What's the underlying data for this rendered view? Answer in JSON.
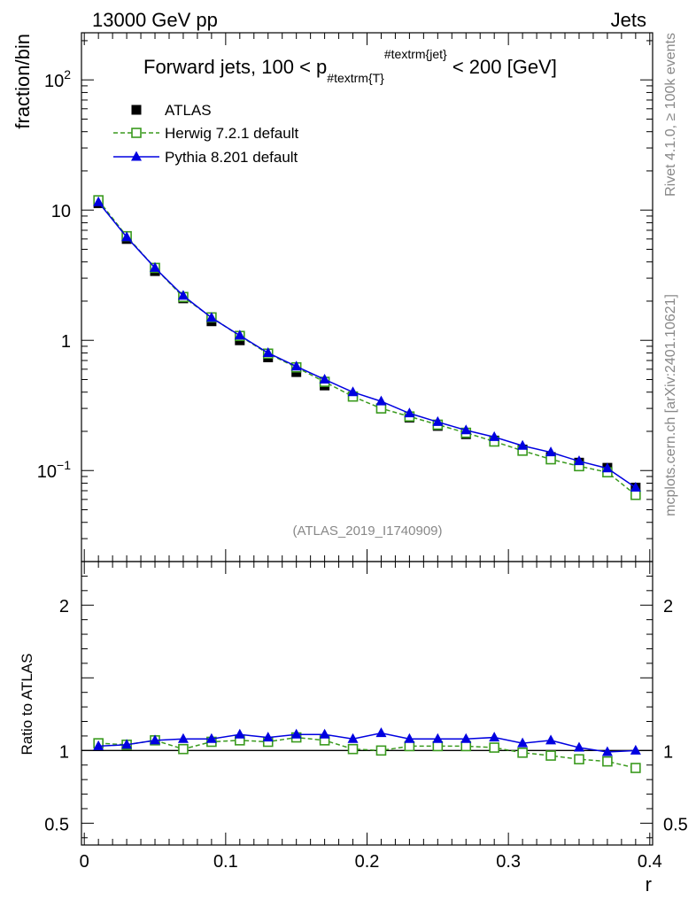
{
  "header": {
    "left": "13000 GeV pp",
    "right": "Jets"
  },
  "side": {
    "rivet": "Rivet 4.1.0, ≥ 100k events",
    "mcplots": "mcplots.cern.ch [arXiv:2401.10621]"
  },
  "chart_data": {
    "type": "line",
    "title": "Forward jets, 100 < p_{#textrm{T}}^{#textrm{jet}} < 200 [GeV]",
    "title_parts": {
      "prefix": "Forward jets, 100 < p",
      "sub": "#textrm{T}",
      "sup": "#textrm{jet}",
      "suffix": " < 200 [GeV]"
    },
    "watermark": "(ATLAS_2019_I1740909)",
    "xlabel": "r",
    "ylabel": "fraction/bin",
    "ratio_ylabel": "Ratio to ATLAS",
    "xlim": [
      -0.002,
      0.402
    ],
    "ylim_log": [
      0.02,
      230
    ],
    "ratio_ylim": [
      0.35,
      2.3
    ],
    "x_ticks": [
      {
        "v": 0,
        "label": "0"
      },
      {
        "v": 0.1,
        "label": "0.1"
      },
      {
        "v": 0.2,
        "label": "0.2"
      },
      {
        "v": 0.3,
        "label": "0.3"
      },
      {
        "v": 0.4,
        "label": "0.4"
      }
    ],
    "y_ticks": [
      {
        "v": 0.1,
        "base": "10",
        "exp": "−1"
      },
      {
        "v": 1,
        "base": "1",
        "exp": ""
      },
      {
        "v": 10,
        "base": "10",
        "exp": ""
      },
      {
        "v": 100,
        "base": "10",
        "exp": "2"
      }
    ],
    "ratio_ticks": [
      {
        "v": 0.5,
        "label": "0.5"
      },
      {
        "v": 1,
        "label": "1"
      },
      {
        "v": 2,
        "label": "2"
      }
    ],
    "x": [
      0.01,
      0.03,
      0.05,
      0.07,
      0.09,
      0.11,
      0.13,
      0.15,
      0.17,
      0.19,
      0.21,
      0.23,
      0.25,
      0.27,
      0.29,
      0.31,
      0.33,
      0.35,
      0.37,
      0.39
    ],
    "series": [
      {
        "name": "ATLAS",
        "color": "#000000",
        "style": "markers",
        "marker": "square-filled",
        "values": [
          11.3,
          6.0,
          3.4,
          2.1,
          1.4,
          1.0,
          0.74,
          0.57,
          0.45,
          0.37,
          0.3,
          0.255,
          0.22,
          0.19,
          0.17,
          0.145,
          0.127,
          0.115,
          0.105,
          0.074
        ]
      },
      {
        "name": "Herwig 7.2.1 default",
        "color": "#3a9a1e",
        "style": "dashed",
        "marker": "square-open",
        "values": [
          11.9,
          6.3,
          3.6,
          2.15,
          1.5,
          1.08,
          0.79,
          0.62,
          0.48,
          0.37,
          0.3,
          0.26,
          0.225,
          0.195,
          0.167,
          0.142,
          0.122,
          0.108,
          0.097,
          0.065
        ]
      },
      {
        "name": "Pythia 8.201 default",
        "color": "#0000e0",
        "style": "solid",
        "marker": "triangle-filled",
        "values": [
          11.5,
          6.2,
          3.6,
          2.2,
          1.49,
          1.09,
          0.8,
          0.63,
          0.5,
          0.4,
          0.34,
          0.275,
          0.236,
          0.204,
          0.181,
          0.155,
          0.138,
          0.118,
          0.104,
          0.074
        ]
      }
    ],
    "ratio_series": [
      {
        "name": "Herwig 7.2.1 default",
        "values": [
          1.05,
          1.04,
          1.07,
          1.01,
          1.06,
          1.07,
          1.06,
          1.09,
          1.07,
          1.01,
          1.0,
          1.03,
          1.03,
          1.03,
          1.02,
          0.985,
          0.965,
          0.94,
          0.925,
          0.88
        ]
      },
      {
        "name": "Pythia 8.201 default",
        "values": [
          1.03,
          1.04,
          1.07,
          1.08,
          1.08,
          1.11,
          1.09,
          1.11,
          1.11,
          1.08,
          1.12,
          1.08,
          1.08,
          1.08,
          1.09,
          1.05,
          1.07,
          1.02,
          0.99,
          1.0
        ]
      }
    ]
  }
}
